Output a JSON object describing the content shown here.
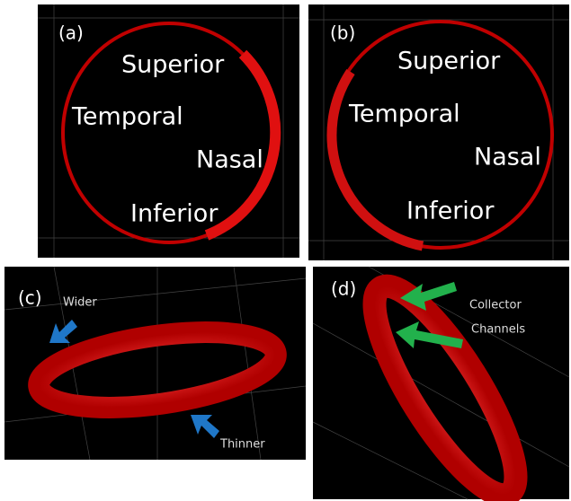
{
  "panels": [
    {
      "label": "(a)",
      "annotations": [
        "Superior",
        "Temporal",
        "Nasal",
        "Inferior"
      ]
    },
    {
      "label": "(b)",
      "annotations": [
        "Superior",
        "Temporal",
        "Nasal",
        "Inferior"
      ]
    },
    {
      "label": "(c)",
      "annotations": [
        "Wider",
        "Thinner"
      ]
    },
    {
      "label": "(d)",
      "annotations": [
        "Collector",
        "Channels"
      ]
    }
  ]
}
